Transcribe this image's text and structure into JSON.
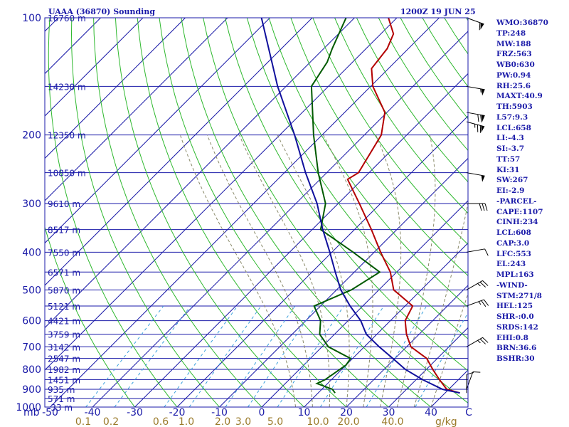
{
  "header": {
    "title": "UAAA (36870) Sounding",
    "time": "1200Z 19 JUN 25"
  },
  "stats": [
    "WMO:36870",
    "TP:248",
    "MW:188",
    "FRZ:563",
    "WB0:630",
    "PW:0.94",
    "RH:25.6",
    "MAXT:40.9",
    "TH:5903",
    "L57:9.3",
    "LCL:658",
    "LI:-4.3",
    "SI:-3.7",
    "TT:57",
    "KI:31",
    "SW:267",
    "EI:-2.9",
    "-PARCEL-",
    "CAPE:1107",
    "CINH:234",
    "LCL:608",
    "CAP:3.0",
    "LFC:553",
    "EL:243",
    "MPL:163",
    "-WIND-",
    "STM:271/8",
    "HEL:125",
    "SHR-:0.0",
    "SRDS:142",
    "EHI:0.8",
    "BRN:36.6",
    "BSHR:30"
  ],
  "colors": {
    "isobar": "#1a1aa8",
    "isotherm": "#1a1aa8",
    "dry_adiabat": "#2eb82e",
    "moist_adiabat": "#8a8a6a",
    "mixing_ratio": "#3aa0dc",
    "temperature": "#b40000",
    "dewpoint": "#005a00",
    "parcel": "#10109c",
    "label": "#1a1aa8",
    "mixing_label": "#9a7a2a"
  },
  "chart_data": {
    "type": "skew-t log-p sounding",
    "y_scale": "log",
    "ylabel": "mb",
    "xlabel": "C",
    "x_unit_label": "C",
    "mixing_unit": "g/kg",
    "p_ticks": [
      100,
      200,
      300,
      400,
      500,
      600,
      700,
      800,
      900,
      1000
    ],
    "t_ticks": [
      -50,
      -40,
      -30,
      -20,
      -10,
      0,
      10,
      20,
      30,
      40
    ],
    "t_tick_labels": [
      "-50",
      "-40",
      "-30",
      "-20",
      "-10",
      "0",
      "10",
      "20",
      "30",
      "40"
    ],
    "mixing_ratio_labels": [
      "0.1",
      "0.2",
      "0.6",
      "1.0",
      "2.0",
      "3.0",
      "5.0",
      "10.0",
      "20.0",
      "40.0"
    ],
    "height_labels": [
      {
        "p": 100,
        "h": "16760 m"
      },
      {
        "p": 150,
        "h": "14230 m"
      },
      {
        "p": 200,
        "h": "12350 m"
      },
      {
        "p": 250,
        "h": "10850 m"
      },
      {
        "p": 300,
        "h": "9610 m"
      },
      {
        "p": 350,
        "h": "8517 m"
      },
      {
        "p": 400,
        "h": "7550 m"
      },
      {
        "p": 450,
        "h": "6571 m"
      },
      {
        "p": 500,
        "h": "5870 m"
      },
      {
        "p": 550,
        "h": "5121 m"
      },
      {
        "p": 600,
        "h": "4421 m"
      },
      {
        "p": 650,
        "h": "3759 m"
      },
      {
        "p": 700,
        "h": "3142 m"
      },
      {
        "p": 750,
        "h": "2547 m"
      },
      {
        "p": 800,
        "h": "1982 m"
      },
      {
        "p": 850,
        "h": "1451 m"
      },
      {
        "p": 900,
        "h": "935 m"
      },
      {
        "p": 950,
        "h": "571 m"
      },
      {
        "p": 1000,
        "h": "-33 m"
      }
    ],
    "series": [
      {
        "name": "Temperature",
        "points": [
          [
            920,
            43.5
          ],
          [
            900,
            39.5
          ],
          [
            850,
            35.5
          ],
          [
            800,
            31.5
          ],
          [
            750,
            27.5
          ],
          [
            700,
            21.0
          ],
          [
            650,
            17.0
          ],
          [
            600,
            13.5
          ],
          [
            550,
            11.8
          ],
          [
            500,
            3.5
          ],
          [
            450,
            -1.5
          ],
          [
            400,
            -8.5
          ],
          [
            350,
            -16.0
          ],
          [
            300,
            -25.0
          ],
          [
            260,
            -33.5
          ],
          [
            250,
            -32.5
          ],
          [
            200,
            -36.0
          ],
          [
            175,
            -40.5
          ],
          [
            150,
            -49.5
          ],
          [
            135,
            -54.0
          ],
          [
            120,
            -55.0
          ],
          [
            110,
            -57.0
          ],
          [
            100,
            -62.0
          ]
        ]
      },
      {
        "name": "Dewpoint",
        "points": [
          [
            920,
            14.0
          ],
          [
            900,
            12.5
          ],
          [
            870,
            7.5
          ],
          [
            850,
            8.5
          ],
          [
            780,
            10.0
          ],
          [
            750,
            9.5
          ],
          [
            700,
            1.5
          ],
          [
            650,
            -3.5
          ],
          [
            600,
            -6.5
          ],
          [
            550,
            -11.5
          ],
          [
            500,
            -6.5
          ],
          [
            450,
            -4.0
          ],
          [
            400,
            -15.0
          ],
          [
            350,
            -28.0
          ],
          [
            300,
            -33.0
          ],
          [
            250,
            -42.0
          ],
          [
            200,
            -52.0
          ],
          [
            150,
            -64.0
          ],
          [
            130,
            -66.0
          ],
          [
            120,
            -68.0
          ],
          [
            100,
            -72.0
          ]
        ]
      },
      {
        "name": "Parcel",
        "points": [
          [
            920,
            43.5
          ],
          [
            900,
            38.5
          ],
          [
            850,
            31.5
          ],
          [
            800,
            25.0
          ],
          [
            750,
            19.5
          ],
          [
            700,
            13.5
          ],
          [
            650,
            7.5
          ],
          [
            600,
            3.0
          ],
          [
            550,
            -3.0
          ],
          [
            500,
            -9.0
          ],
          [
            450,
            -14.5
          ],
          [
            400,
            -20.5
          ],
          [
            350,
            -27.5
          ],
          [
            300,
            -35.0
          ],
          [
            250,
            -45.0
          ],
          [
            200,
            -56.5
          ],
          [
            150,
            -72.0
          ],
          [
            100,
            -92.0
          ]
        ]
      }
    ],
    "wind_barbs": [
      {
        "p": 100,
        "dir": 290,
        "kt": 60
      },
      {
        "p": 150,
        "dir": 280,
        "kt": 55
      },
      {
        "p": 175,
        "dir": 280,
        "kt": 70
      },
      {
        "p": 185,
        "dir": 285,
        "kt": 75
      },
      {
        "p": 250,
        "dir": 280,
        "kt": 50
      },
      {
        "p": 300,
        "dir": 270,
        "kt": 30
      },
      {
        "p": 400,
        "dir": 260,
        "kt": 10
      },
      {
        "p": 500,
        "dir": 240,
        "kt": 25
      },
      {
        "p": 550,
        "dir": 250,
        "kt": 25
      },
      {
        "p": 700,
        "dir": 240,
        "kt": 25
      },
      {
        "p": 900,
        "dir": 200,
        "kt": 10
      },
      {
        "p": 920,
        "dir": 180,
        "kt": 10
      }
    ]
  }
}
